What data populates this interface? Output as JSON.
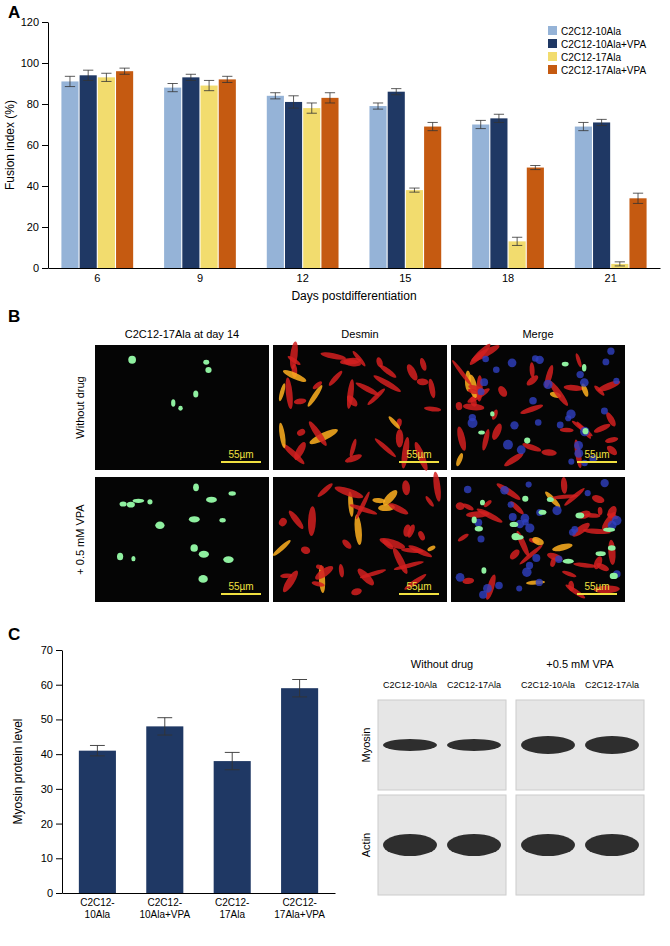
{
  "chart_data": [
    {
      "type": "bar",
      "x_label": "Days postdifferentiation",
      "y_label": "Fusion index (%)",
      "categories": [
        "6",
        "9",
        "12",
        "15",
        "18",
        "21"
      ],
      "series": [
        {
          "name": "C2C12-10Ala",
          "color": "#95b3d7",
          "values": [
            91,
            88,
            84,
            79,
            70,
            69
          ],
          "errors": [
            2.5,
            2,
            1.5,
            1.5,
            2,
            2
          ]
        },
        {
          "name": "C2C12-10Ala+VPA",
          "color": "#1f3864",
          "values": [
            94,
            93,
            81,
            86,
            73,
            71
          ],
          "errors": [
            2.5,
            1.5,
            3,
            1.5,
            2,
            1.5
          ]
        },
        {
          "name": "C2C12-17Ala",
          "color": "#f2dc6e",
          "values": [
            93,
            89,
            78,
            38,
            13,
            2
          ],
          "errors": [
            2,
            2.5,
            2.5,
            1,
            2,
            1
          ]
        },
        {
          "name": "C2C12-17Ala+VPA",
          "color": "#c55a11",
          "values": [
            96,
            92,
            83,
            69,
            49,
            34
          ],
          "errors": [
            1.5,
            1.5,
            2.5,
            2,
            1,
            2.5
          ]
        }
      ],
      "ylim": [
        0,
        120
      ],
      "yticks": [
        0,
        20,
        40,
        60,
        80,
        100,
        120
      ],
      "grid": false,
      "legend": "top-right"
    },
    {
      "type": "bar",
      "y_label": "Myosin protein level",
      "categories": [
        "C2C12-10Ala",
        "C2C12-10Ala+VPA",
        "C2C12-17Ala",
        "C2C12-17Ala+VPA"
      ],
      "values": [
        41,
        48,
        38,
        59
      ],
      "errors": [
        1.5,
        2.5,
        2.5,
        2.5
      ],
      "color": "#1f3864",
      "ylim": [
        0,
        70
      ],
      "yticks": [
        0,
        10,
        20,
        30,
        40,
        50,
        60,
        70
      ],
      "grid": false
    }
  ],
  "panel_labels": [
    "A",
    "B",
    "C"
  ],
  "micrographs": {
    "columns": [
      "C2C12-17Ala at day 14",
      "Desmin",
      "Merge"
    ],
    "rows": [
      "Without drug",
      "+ 0.5 mM VPA"
    ],
    "scale_bar": "55µm"
  },
  "western_blot": {
    "conditions": [
      "Without drug",
      "+0.5 mM VPA"
    ],
    "lanes": [
      "C2C12-10Ala",
      "C2C12-17Ala"
    ],
    "proteins": [
      "Myosin",
      "Actin"
    ]
  }
}
